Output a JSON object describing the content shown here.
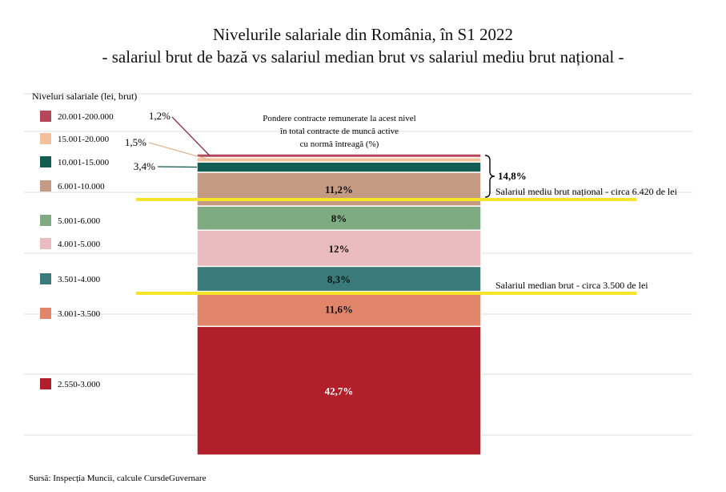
{
  "title_line1": "Nivelurile salariale din România, în S1 2022",
  "title_line2": "- salariul brut de bază vs salariul median brut vs salariul mediu brut național -",
  "source": "Sursă: Inspecția Muncii, calcule CursdeGuvernare",
  "chart_data": {
    "type": "bar",
    "subtype": "stacked-100",
    "legend_title": "Niveluri salariale (lei, brut)",
    "legend_placement": "left",
    "bar_caption": "Pondere contracte remunerate la acest nivel\nîn total contracte de muncă active\ncu normă întreagă (%)",
    "series": [
      {
        "name": "2.550-3.000",
        "value": 42.7,
        "label": "42,7%",
        "color": "#b01f2a"
      },
      {
        "name": "3.001-3.500",
        "value": 11.6,
        "label": "11,6%",
        "color": "#e0846a"
      },
      {
        "name": "3.501-4.000",
        "value": 8.3,
        "label": "8,3%",
        "color": "#3a7a7a"
      },
      {
        "name": "4.001-5.000",
        "value": 12,
        "label": "12%",
        "color": "#ebbcbf"
      },
      {
        "name": "5.001-6.000",
        "value": 8,
        "label": "8%",
        "color": "#7fab83"
      },
      {
        "name": "6.001-10.000",
        "value": 11.2,
        "label": "11,2%",
        "color": "#c49a83"
      },
      {
        "name": "10.001-15.000",
        "value": 3.4,
        "label": "3,4%",
        "color": "#135c54"
      },
      {
        "name": "15.001-20.000",
        "value": 1.5,
        "label": "1,5%",
        "color": "#f2c09a"
      },
      {
        "name": "20.001-200.000",
        "value": 1.2,
        "label": "1,2%",
        "color": "#b5475a"
      }
    ],
    "bracket_label": "14,8%",
    "reference_lines": [
      {
        "label": "Salariul mediu brut național - circa 6.420 de lei",
        "color": "#f5e52a"
      },
      {
        "label": "Salariul median brut - circa 3.500 de lei",
        "color": "#f5e52a"
      }
    ],
    "grid": true
  }
}
